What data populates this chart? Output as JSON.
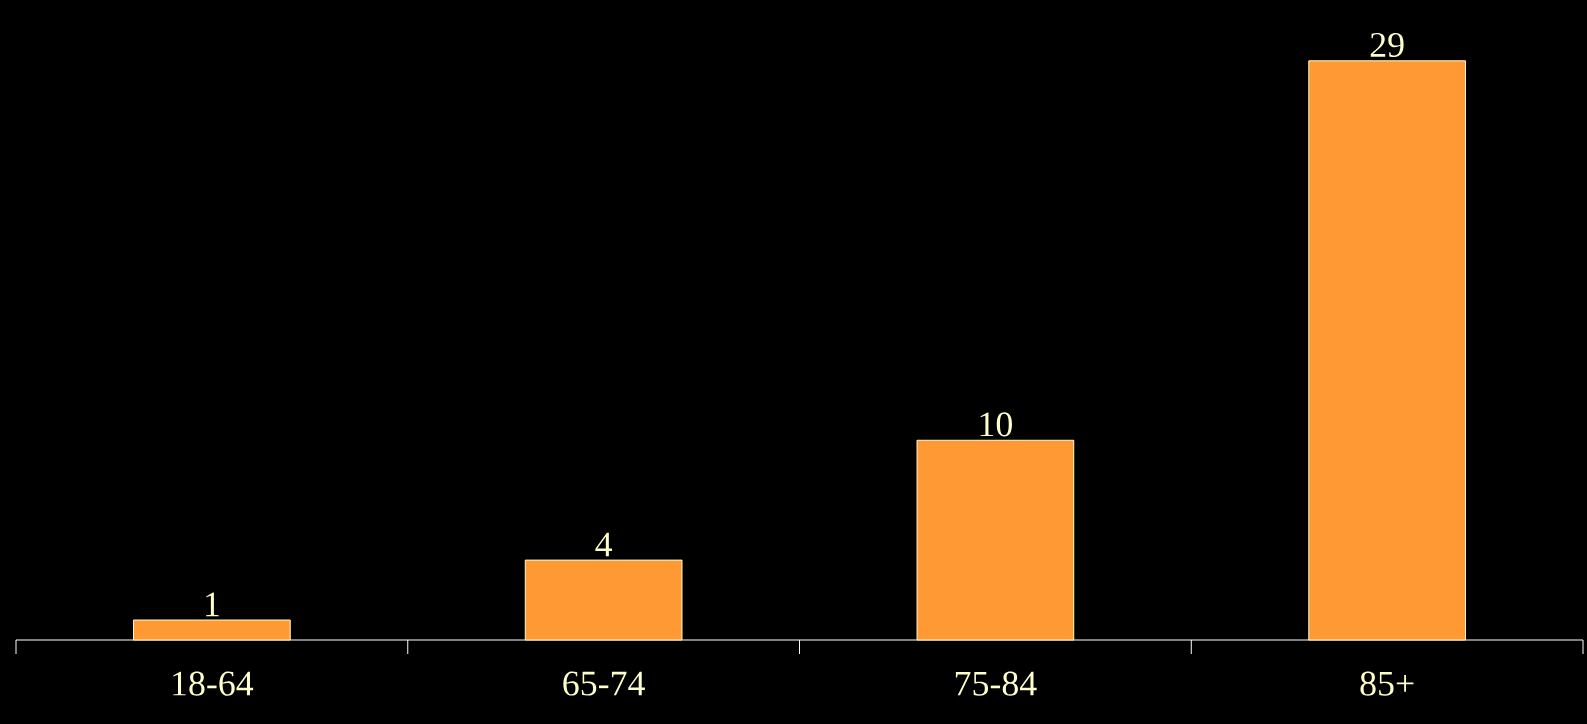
{
  "chart_data": {
    "type": "bar",
    "categories": [
      "18-64",
      "65-74",
      "75-84",
      "85+"
    ],
    "values": [
      1,
      4,
      10,
      29
    ],
    "color": "#ff9933",
    "data_labels": true
  }
}
